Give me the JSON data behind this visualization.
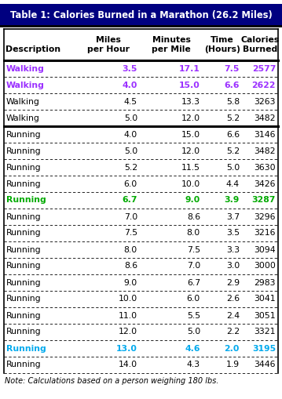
{
  "title": "Table 1: Calories Burned in a Marathon (26.2 Miles)",
  "rows": [
    [
      "Walking",
      "3.5",
      "17.1",
      "7.5",
      "2577"
    ],
    [
      "Walking",
      "4.0",
      "15.0",
      "6.6",
      "2622"
    ],
    [
      "Walking",
      "4.5",
      "13.3",
      "5.8",
      "3263"
    ],
    [
      "Walking",
      "5.0",
      "12.0",
      "5.2",
      "3482"
    ],
    [
      "Running",
      "4.0",
      "15.0",
      "6.6",
      "3146"
    ],
    [
      "Running",
      "5.0",
      "12.0",
      "5.2",
      "3482"
    ],
    [
      "Running",
      "5.2",
      "11.5",
      "5.0",
      "3630"
    ],
    [
      "Running",
      "6.0",
      "10.0",
      "4.4",
      "3426"
    ],
    [
      "Running",
      "6.7",
      "9.0",
      "3.9",
      "3287"
    ],
    [
      "Running",
      "7.0",
      "8.6",
      "3.7",
      "3296"
    ],
    [
      "Running",
      "7.5",
      "8.0",
      "3.5",
      "3216"
    ],
    [
      "Running",
      "8.0",
      "7.5",
      "3.3",
      "3094"
    ],
    [
      "Running",
      "8.6",
      "7.0",
      "3.0",
      "3000"
    ],
    [
      "Running",
      "9.0",
      "6.7",
      "2.9",
      "2983"
    ],
    [
      "Running",
      "10.0",
      "6.0",
      "2.6",
      "3041"
    ],
    [
      "Running",
      "11.0",
      "5.5",
      "2.4",
      "3051"
    ],
    [
      "Running",
      "12.0",
      "5.0",
      "2.2",
      "3321"
    ],
    [
      "Running",
      "13.0",
      "4.6",
      "2.0",
      "3195"
    ],
    [
      "Running",
      "14.0",
      "4.3",
      "1.9",
      "3446"
    ]
  ],
  "row_colors": [
    "purple",
    "purple",
    "black",
    "black",
    "black",
    "black",
    "black",
    "black",
    "green",
    "black",
    "black",
    "black",
    "black",
    "black",
    "black",
    "black",
    "black",
    "cyan",
    "black"
  ],
  "row_bold": [
    true,
    true,
    false,
    false,
    false,
    false,
    false,
    false,
    true,
    false,
    false,
    false,
    false,
    false,
    false,
    false,
    false,
    true,
    false
  ],
  "note": "Note: Calculations based on a person weighing 180 lbs.",
  "title_bg": "#000080",
  "title_fg": "#FFFFFF",
  "separator_after_row": 3,
  "color_map": {
    "purple": "#9B30FF",
    "green": "#00AA00",
    "cyan": "#00AAEE",
    "black": "#000000"
  },
  "col_headers_line1": [
    "",
    "Miles",
    "Minutes",
    "Time",
    "Calories"
  ],
  "col_headers_line2": [
    "Description",
    "per Hour",
    "per Mile",
    "(Hours)",
    "Burned"
  ],
  "col_align_header": [
    "left",
    "center",
    "center",
    "center",
    "center"
  ],
  "col_align_data": [
    "left",
    "right",
    "right",
    "right",
    "right"
  ],
  "fig_width": 3.59,
  "fig_height": 5.09,
  "dpi": 100
}
